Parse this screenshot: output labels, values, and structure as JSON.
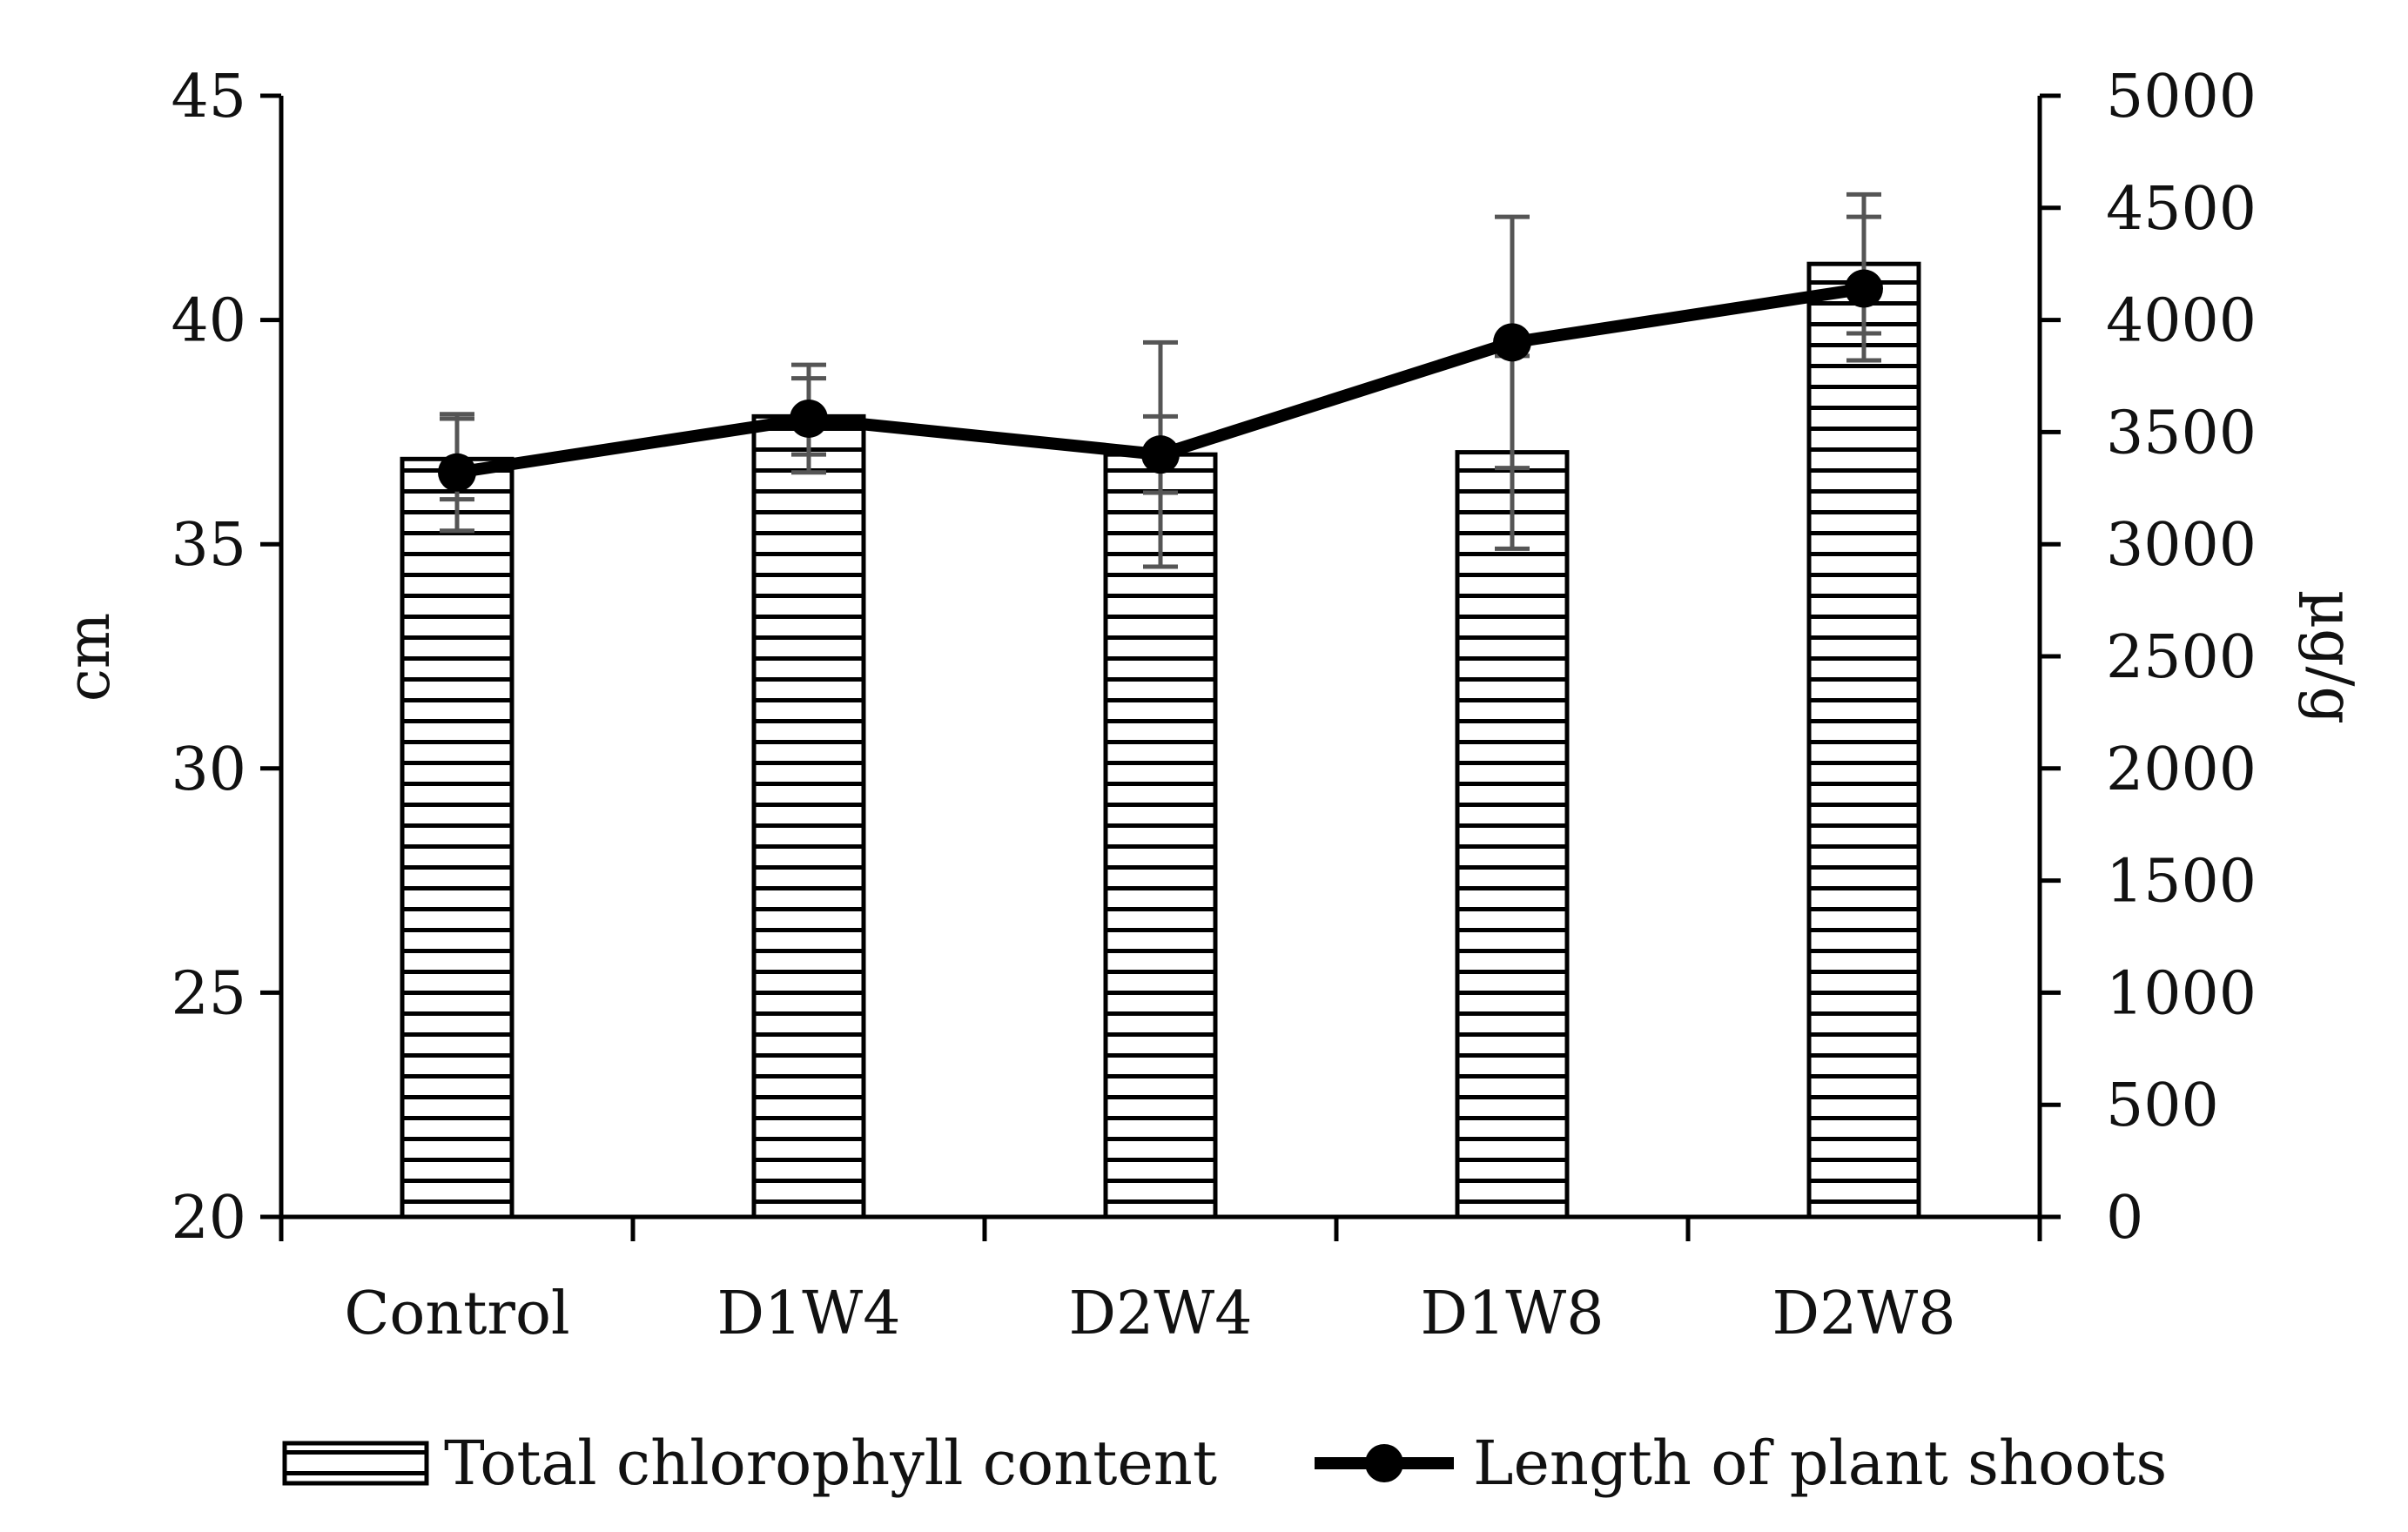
{
  "chart_data": {
    "type": "bar+line",
    "categories": [
      "Control",
      "D1W4",
      "D2W4",
      "D1W8",
      "D2W8"
    ],
    "left_axis": {
      "label": "cm",
      "range": [
        20,
        45
      ],
      "ticks": [
        20,
        25,
        30,
        35,
        40,
        45
      ]
    },
    "right_axis": {
      "label": "µg/g",
      "range": [
        0,
        5000
      ],
      "ticks": [
        0,
        500,
        1000,
        1500,
        2000,
        2500,
        3000,
        3500,
        4000,
        4500,
        5000
      ]
    },
    "series": [
      {
        "name": "Total chlorophyll content",
        "type": "bar",
        "axis": "right",
        "pattern": "horizontal-stripes",
        "values": [
          3380,
          3570,
          3400,
          3410,
          4250
        ],
        "error": [
          180,
          170,
          170,
          430,
          310
        ]
      },
      {
        "name": "Length of plant shoots",
        "type": "line",
        "axis": "left",
        "marker": "circle",
        "values": [
          36.6,
          37.8,
          37.0,
          39.5,
          40.7
        ],
        "error": [
          1.3,
          1.2,
          2.5,
          2.8,
          1.6
        ]
      }
    ],
    "legend": {
      "position": "bottom"
    },
    "grid": false,
    "colors": {
      "ink": "#000000",
      "error_bar": "#555555",
      "background": "#ffffff"
    }
  }
}
